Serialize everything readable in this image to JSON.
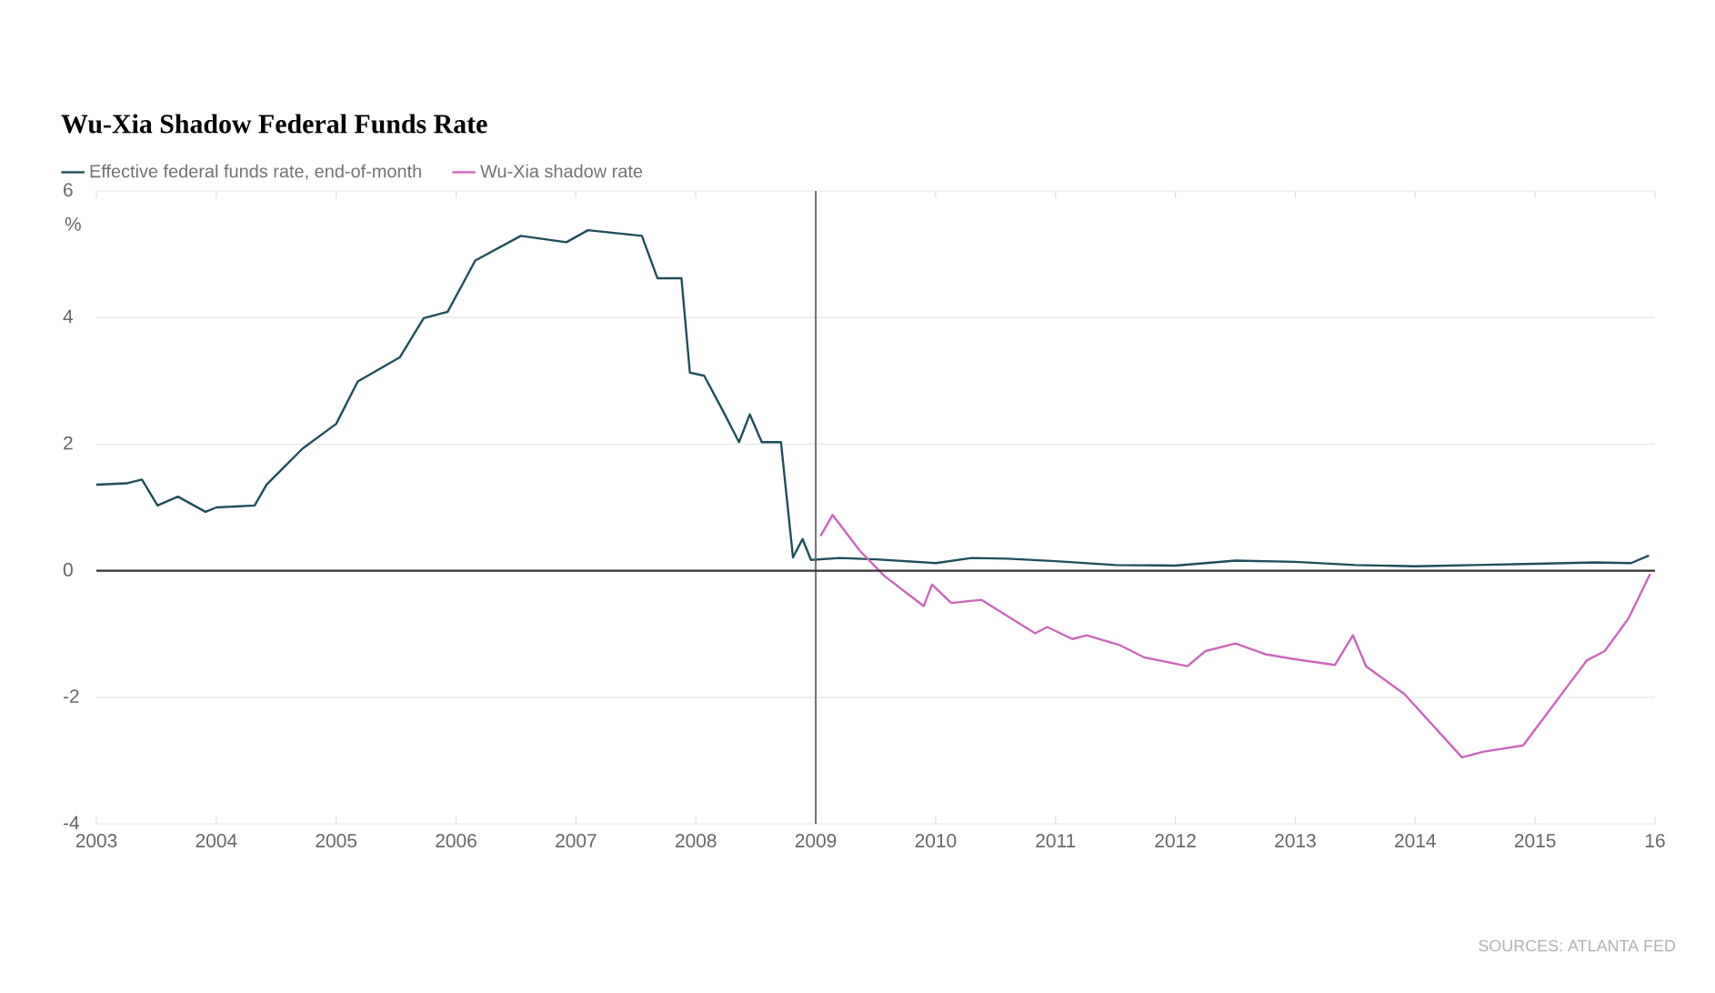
{
  "chart_data": {
    "type": "line",
    "title": "Wu-Xia Shadow Federal Funds Rate",
    "ylabel": "%",
    "annotations": [
      "SOURCES: ATLANTA FED"
    ],
    "xlim": [
      2003,
      2016
    ],
    "xticks": [
      2003,
      2004,
      2005,
      2006,
      2007,
      2008,
      2009,
      2010,
      2011,
      2012,
      2013,
      2014,
      2015,
      {
        "value": 2016,
        "label": "16"
      }
    ],
    "ylim": [
      -4,
      6
    ],
    "yticks": [
      -4,
      -2,
      0,
      2,
      4,
      6
    ],
    "grid": "y",
    "legend": "top left",
    "ref_lines": [
      {
        "axis": "x",
        "value": 2009,
        "color": "#666666"
      },
      {
        "axis": "y",
        "value": 0,
        "color": "#333333"
      }
    ],
    "series": [
      {
        "name": "Effective federal funds rate, end-of-month",
        "color": "#1f4e5a",
        "x": [
          2003.0,
          2003.25,
          2003.38,
          2003.51,
          2003.68,
          2003.91,
          2004.0,
          2004.32,
          2004.42,
          2004.72,
          2005.0,
          2005.18,
          2005.53,
          2005.73,
          2005.93,
          2006.16,
          2006.54,
          2006.92,
          2007.1,
          2007.55,
          2007.68,
          2007.88,
          2007.95,
          2008.07,
          2008.23,
          2008.36,
          2008.45,
          2008.55,
          2008.71,
          2008.81,
          2008.89,
          2008.96,
          2009.2,
          2009.5,
          2010.0,
          2010.3,
          2010.6,
          2011.0,
          2011.5,
          2012.0,
          2012.5,
          2013.0,
          2013.5,
          2014.0,
          2014.5,
          2015.0,
          2015.5,
          2015.8,
          2015.95
        ],
        "values": [
          1.36,
          1.38,
          1.44,
          1.03,
          1.17,
          0.93,
          1.0,
          1.03,
          1.36,
          1.93,
          2.32,
          2.99,
          3.37,
          3.99,
          4.09,
          4.9,
          5.29,
          5.19,
          5.38,
          5.29,
          4.62,
          4.62,
          3.13,
          3.08,
          2.51,
          2.03,
          2.47,
          2.03,
          2.03,
          0.21,
          0.5,
          0.17,
          0.2,
          0.18,
          0.12,
          0.2,
          0.19,
          0.15,
          0.09,
          0.08,
          0.16,
          0.14,
          0.09,
          0.07,
          0.09,
          0.11,
          0.13,
          0.12,
          0.24
        ]
      },
      {
        "name": "Wu-Xia shadow rate",
        "color": "#cc66bb",
        "x": [
          2009.04,
          2009.14,
          2009.37,
          2009.57,
          2009.9,
          2009.97,
          2010.13,
          2010.38,
          2010.83,
          2010.93,
          2011.14,
          2011.26,
          2011.54,
          2011.74,
          2012.1,
          2012.25,
          2012.5,
          2012.75,
          2013.0,
          2013.33,
          2013.48,
          2013.59,
          2013.91,
          2014.39,
          2014.57,
          2014.9,
          2015.28,
          2015.43,
          2015.58,
          2015.78,
          2015.96
        ],
        "values": [
          0.55,
          0.88,
          0.31,
          -0.08,
          -0.56,
          -0.22,
          -0.51,
          -0.46,
          -0.99,
          -0.89,
          -1.08,
          -1.02,
          -1.18,
          -1.37,
          -1.51,
          -1.27,
          -1.15,
          -1.32,
          -1.4,
          -1.49,
          -1.02,
          -1.51,
          -1.95,
          -2.95,
          -2.86,
          -2.76,
          -1.8,
          -1.42,
          -1.27,
          -0.75,
          -0.05
        ]
      }
    ]
  }
}
